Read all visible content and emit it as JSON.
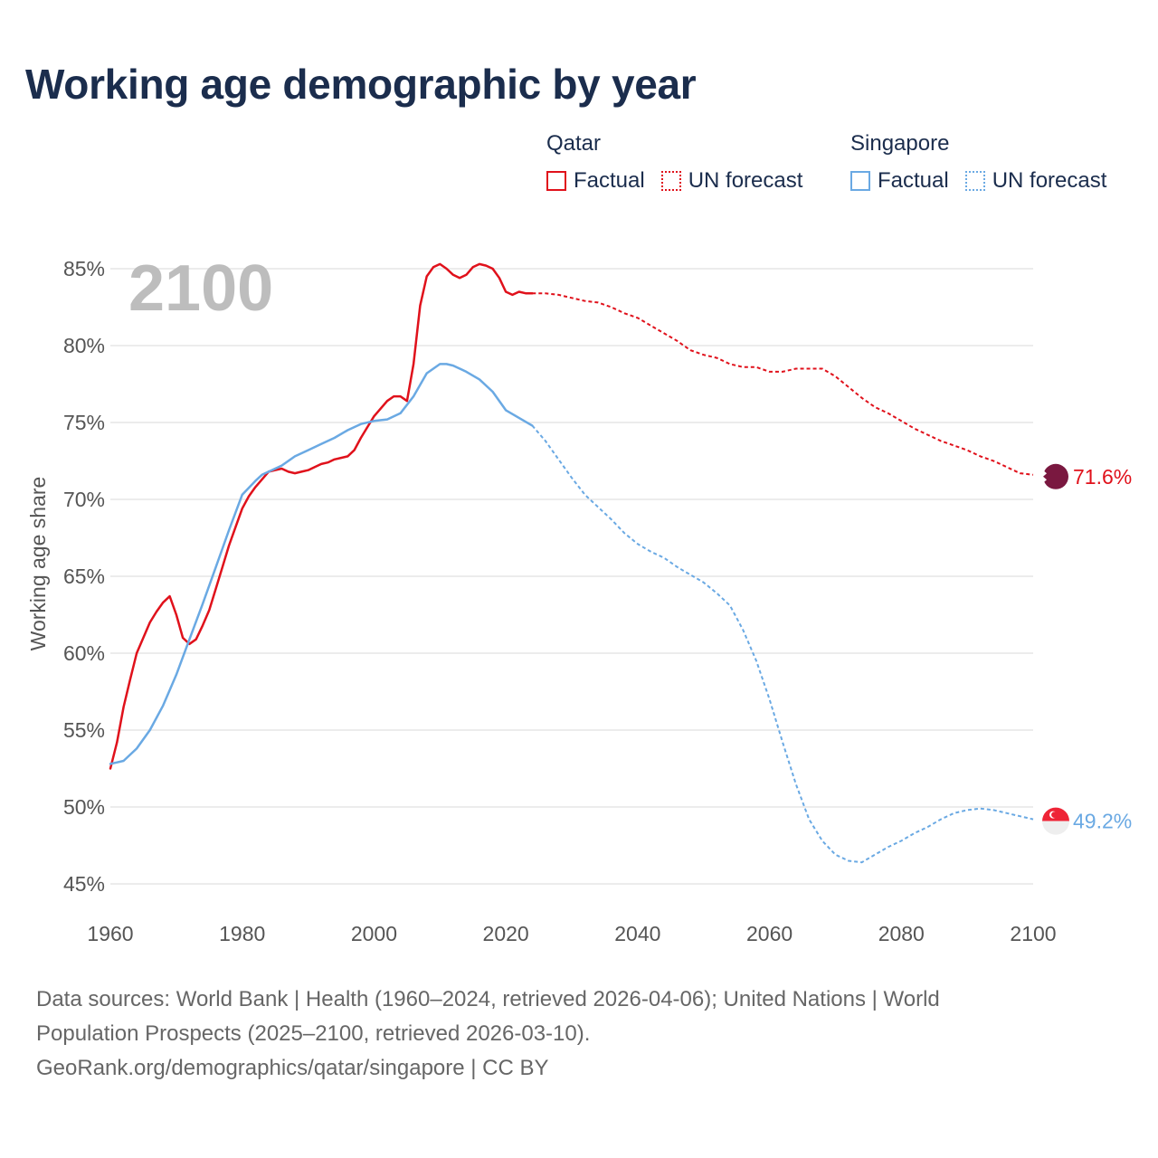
{
  "title": "Working age demographic by year",
  "legend": {
    "groups": [
      {
        "country": "Qatar",
        "factual_label": "Factual",
        "forecast_label": "UN forecast",
        "color": "#e0111b"
      },
      {
        "country": "Singapore",
        "factual_label": "Factual",
        "forecast_label": "UN forecast",
        "color": "#6aa9e3"
      }
    ]
  },
  "chart_data": {
    "type": "line",
    "title": "Working age demographic by year",
    "xlabel": "",
    "ylabel": "Working age share",
    "xlim": [
      1960,
      2100
    ],
    "ylim": [
      45,
      85
    ],
    "x_ticks": [
      1960,
      1980,
      2000,
      2020,
      2040,
      2060,
      2080,
      2100
    ],
    "y_ticks": [
      "45%",
      "50%",
      "55%",
      "60%",
      "65%",
      "70%",
      "75%",
      "80%",
      "85%"
    ],
    "y_tick_values": [
      45,
      50,
      55,
      60,
      65,
      70,
      75,
      80,
      85
    ],
    "grid": true,
    "year_watermark": "2100",
    "series": [
      {
        "name": "Qatar",
        "color": "#e0111b",
        "end_label": "71.6%",
        "flag_icon": "qatar-flag-icon",
        "factual": {
          "x": [
            1960,
            1961,
            1962,
            1963,
            1964,
            1965,
            1966,
            1967,
            1968,
            1969,
            1970,
            1971,
            1972,
            1973,
            1974,
            1975,
            1976,
            1977,
            1978,
            1979,
            1980,
            1981,
            1982,
            1983,
            1984,
            1985,
            1986,
            1987,
            1988,
            1989,
            1990,
            1991,
            1992,
            1993,
            1994,
            1995,
            1996,
            1997,
            1998,
            1999,
            2000,
            2001,
            2002,
            2003,
            2004,
            2005,
            2006,
            2007,
            2008,
            2009,
            2010,
            2011,
            2012,
            2013,
            2014,
            2015,
            2016,
            2017,
            2018,
            2019,
            2020,
            2021,
            2022,
            2023,
            2024
          ],
          "y": [
            52.5,
            54.2,
            56.5,
            58.3,
            60.0,
            61.0,
            62.0,
            62.7,
            63.3,
            63.7,
            62.5,
            61.0,
            60.6,
            60.9,
            61.8,
            62.8,
            64.2,
            65.6,
            67.0,
            68.2,
            69.4,
            70.2,
            70.8,
            71.3,
            71.8,
            71.9,
            72.0,
            71.8,
            71.7,
            71.8,
            71.9,
            72.1,
            72.3,
            72.4,
            72.6,
            72.7,
            72.8,
            73.2,
            74.0,
            74.7,
            75.4,
            75.9,
            76.4,
            76.7,
            76.7,
            76.4,
            78.8,
            82.6,
            84.5,
            85.1,
            85.3,
            85.0,
            84.6,
            84.4,
            84.6,
            85.1,
            85.3,
            85.2,
            85.0,
            84.4,
            83.5,
            83.3,
            83.5,
            83.4,
            83.4
          ]
        },
        "forecast": {
          "x": [
            2024,
            2026,
            2028,
            2030,
            2032,
            2034,
            2036,
            2038,
            2040,
            2042,
            2044,
            2046,
            2048,
            2050,
            2052,
            2054,
            2056,
            2058,
            2060,
            2062,
            2064,
            2066,
            2068,
            2070,
            2072,
            2074,
            2076,
            2078,
            2080,
            2082,
            2084,
            2086,
            2088,
            2090,
            2092,
            2094,
            2096,
            2098,
            2100
          ],
          "y": [
            83.4,
            83.4,
            83.3,
            83.1,
            82.9,
            82.8,
            82.5,
            82.1,
            81.8,
            81.3,
            80.8,
            80.3,
            79.7,
            79.4,
            79.2,
            78.8,
            78.6,
            78.6,
            78.3,
            78.3,
            78.5,
            78.5,
            78.5,
            78.0,
            77.3,
            76.6,
            76.0,
            75.6,
            75.1,
            74.6,
            74.2,
            73.8,
            73.5,
            73.2,
            72.8,
            72.5,
            72.1,
            71.7,
            71.6
          ]
        }
      },
      {
        "name": "Singapore",
        "color": "#6aa9e3",
        "end_label": "49.2%",
        "flag_icon": "singapore-flag-icon",
        "factual": {
          "x": [
            1960,
            1962,
            1964,
            1966,
            1968,
            1970,
            1972,
            1974,
            1976,
            1978,
            1980,
            1982,
            1983,
            1984,
            1986,
            1988,
            1990,
            1992,
            1994,
            1996,
            1998,
            2000,
            2002,
            2004,
            2006,
            2008,
            2010,
            2011,
            2012,
            2014,
            2016,
            2018,
            2020,
            2022,
            2024
          ],
          "y": [
            52.8,
            53.0,
            53.8,
            55.0,
            56.6,
            58.6,
            60.9,
            63.2,
            65.6,
            68.0,
            70.3,
            71.2,
            71.6,
            71.8,
            72.2,
            72.8,
            73.2,
            73.6,
            74.0,
            74.5,
            74.9,
            75.1,
            75.2,
            75.6,
            76.7,
            78.2,
            78.8,
            78.8,
            78.7,
            78.3,
            77.8,
            77.0,
            75.8,
            75.3,
            74.8
          ]
        },
        "forecast": {
          "x": [
            2024,
            2026,
            2028,
            2030,
            2032,
            2034,
            2036,
            2038,
            2040,
            2042,
            2044,
            2046,
            2048,
            2050,
            2052,
            2054,
            2056,
            2058,
            2060,
            2062,
            2064,
            2066,
            2068,
            2070,
            2072,
            2074,
            2076,
            2078,
            2080,
            2082,
            2084,
            2086,
            2088,
            2090,
            2092,
            2094,
            2096,
            2098,
            2100
          ],
          "y": [
            74.8,
            73.8,
            72.6,
            71.4,
            70.3,
            69.5,
            68.7,
            67.8,
            67.1,
            66.6,
            66.2,
            65.6,
            65.1,
            64.6,
            63.9,
            63.1,
            61.5,
            59.5,
            57.0,
            54.2,
            51.5,
            49.2,
            47.8,
            46.9,
            46.5,
            46.4,
            46.9,
            47.4,
            47.8,
            48.3,
            48.7,
            49.2,
            49.6,
            49.8,
            49.9,
            49.8,
            49.6,
            49.4,
            49.2
          ]
        }
      }
    ]
  },
  "source": {
    "line1": "Data sources: World Bank | Health (1960–2024, retrieved 2026-04-06); United Nations | World",
    "line2": "Population Prospects (2025–2100, retrieved 2026-03-10).",
    "line3": "GeoRank.org/demographics/qatar/singapore | CC BY"
  }
}
